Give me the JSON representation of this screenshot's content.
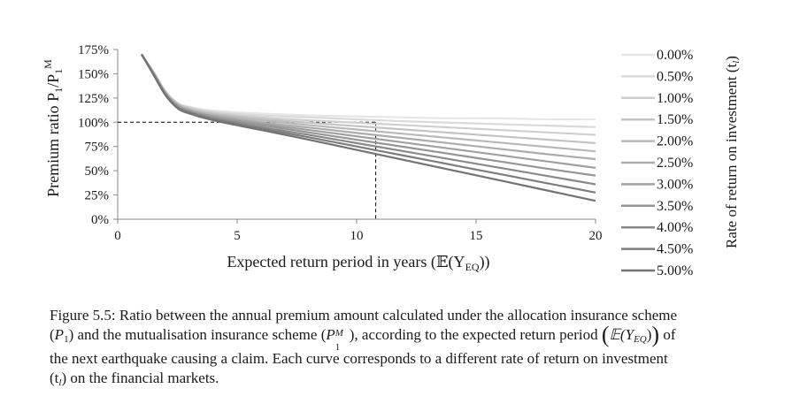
{
  "chart_data": {
    "type": "line",
    "xlabel": "Expected return period in years (𝔼(Y",
    "xlabel_sub": "EQ",
    "xlabel_end": "))",
    "ylabel": "Premium ratio P",
    "ylabel_sub1": "1",
    "ylabel_slash": "/P",
    "ylabel_sub2": "1",
    "ylabel_sup": "M",
    "legend_title": "Rate of return on investment (t",
    "legend_title_sub": "l",
    "legend_title_end": ")",
    "xlim": [
      0,
      20
    ],
    "ylim": [
      0,
      175
    ],
    "xticks": [
      "0",
      "5",
      "10",
      "15",
      "20"
    ],
    "xtick_values": [
      0,
      5,
      10,
      15,
      20
    ],
    "yticks": [
      "0%",
      "25%",
      "50%",
      "75%",
      "100%",
      "125%",
      "150%",
      "175%"
    ],
    "ytick_values": [
      0,
      25,
      50,
      75,
      100,
      125,
      150,
      175
    ],
    "grid": false,
    "legend_position": "right",
    "reference_point": {
      "x": 10.8,
      "y": 100
    },
    "x": [
      1,
      1.5,
      2,
      2.5,
      3,
      4,
      6,
      8,
      10,
      12,
      14,
      16,
      18,
      20
    ],
    "series": [
      {
        "name": "0.00%",
        "color": "#e6e6e6",
        "values": [
          170,
          152,
          132,
          120,
          116,
          112,
          109,
          107,
          106,
          105,
          104,
          104,
          103,
          103
        ]
      },
      {
        "name": "0.50%",
        "color": "#dadada",
        "values": [
          170,
          152,
          132,
          120,
          115.5,
          111,
          107,
          105,
          103,
          101,
          99.5,
          98,
          96.5,
          95
        ]
      },
      {
        "name": "1.00%",
        "color": "#cfcfcf",
        "values": [
          170,
          152,
          132,
          119.5,
          115,
          110,
          105,
          102,
          99.5,
          97,
          94.5,
          92,
          89.5,
          87
        ]
      },
      {
        "name": "1.50%",
        "color": "#c3c3c3",
        "values": [
          170,
          151,
          131,
          119,
          114,
          109,
          103.5,
          99.5,
          96,
          92.5,
          89,
          85.5,
          82,
          78.5
        ]
      },
      {
        "name": "2.00%",
        "color": "#b8b8b8",
        "values": [
          170,
          151,
          131,
          118.5,
          113,
          108,
          102,
          97,
          92.5,
          88,
          83.5,
          79,
          74.5,
          70
        ]
      },
      {
        "name": "2.50%",
        "color": "#acacac",
        "values": [
          170,
          151,
          130,
          118,
          112.5,
          107,
          100,
          94.5,
          89,
          83.5,
          78,
          72.5,
          67,
          62
        ]
      },
      {
        "name": "3.00%",
        "color": "#a0a0a0",
        "values": [
          170,
          150,
          130,
          117,
          112,
          106,
          98.5,
          92,
          85.5,
          79,
          72.5,
          66,
          59.5,
          53
        ]
      },
      {
        "name": "3.50%",
        "color": "#959595",
        "values": [
          170,
          150,
          129,
          116.5,
          111,
          105,
          97,
          89.5,
          82,
          74.5,
          67,
          59.5,
          52,
          45
        ]
      },
      {
        "name": "4.00%",
        "color": "#898989",
        "values": [
          170,
          150,
          129,
          116,
          110.5,
          104,
          95,
          87,
          78.5,
          70,
          61.5,
          53,
          44.5,
          36
        ]
      },
      {
        "name": "4.50%",
        "color": "#7d7d7d",
        "values": [
          170,
          149,
          128,
          115,
          110,
          103,
          93.5,
          84.5,
          75,
          65.5,
          56,
          46.5,
          37,
          27.5
        ]
      },
      {
        "name": "5.00%",
        "color": "#737373",
        "values": [
          170,
          149,
          128,
          114.5,
          109,
          102,
          92,
          82,
          71.5,
          61,
          50.5,
          40,
          29.5,
          19
        ]
      }
    ]
  },
  "caption": {
    "line1": "Figure 5.5: Ratio between the annual premium amount calculated under the allocation insurance scheme",
    "line2_a": "(",
    "line2_P": "P",
    "line2_sub": "1",
    "line2_b": ") and the mutualisation insurance scheme (",
    "line2_P2": "P",
    "line2_P2_sub": "1",
    "line2_P2_sup": "M",
    "line2_c": "), according to the expected return period ",
    "line2_formula": "𝔼(Y",
    "line2_formula_sub": "EQ",
    "line2_formula_end": ")",
    "line2_d": " of",
    "line3": "the next earthquake causing a claim. Each curve corresponds to a different rate of return on investment",
    "line4_a": "(t",
    "line4_sub": "l",
    "line4_b": ") on the financial markets."
  }
}
